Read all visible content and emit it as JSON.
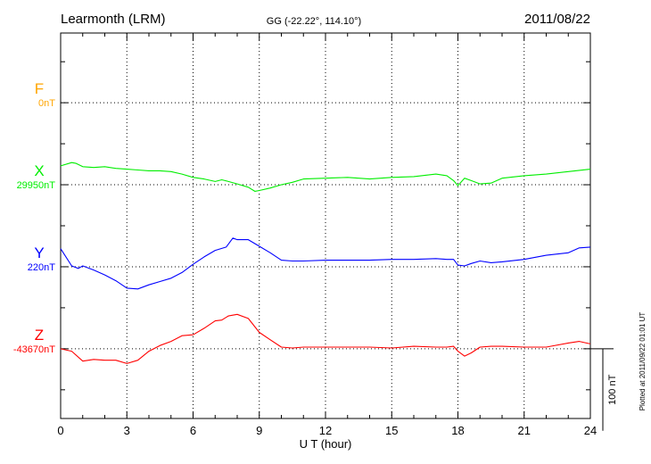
{
  "header": {
    "station": "Learmonth (LRM)",
    "coords": "GG (-22.22°, 114.10°)",
    "date": "2011/08/22"
  },
  "plotted_note": "Plotted at 2011/09/22 01:01  UT",
  "chart_data": {
    "type": "line",
    "title": "Learmonth (LRM)",
    "xlabel": "U T (hour)",
    "ylabel": "",
    "xlim": [
      0,
      24
    ],
    "xticks": [
      0,
      3,
      6,
      9,
      12,
      15,
      18,
      21,
      24
    ],
    "grid": true,
    "scale_bar": {
      "value": 100,
      "label": "100 nT"
    },
    "ylim_nT": [
      -85,
      385
    ],
    "series": [
      {
        "name": "F",
        "baseline_label": "0nT",
        "baseline_offset_nT": 300,
        "color": "#ffa500",
        "x": [],
        "y": []
      },
      {
        "name": "X",
        "baseline_label": "29950nT",
        "baseline_offset_nT": 200,
        "color": "#00ee00",
        "x": [
          0,
          0.5,
          0.7,
          1,
          1.5,
          2,
          2.5,
          3,
          3.5,
          4,
          4.5,
          5,
          5.5,
          6,
          6.5,
          7,
          7.3,
          7.6,
          8,
          8.5,
          8.8,
          9,
          9.5,
          10,
          10.5,
          11,
          12,
          13,
          14,
          15,
          16,
          17,
          17.5,
          17.8,
          18,
          18.3,
          18.6,
          19,
          19.5,
          20,
          21,
          22,
          23,
          24
        ],
        "y": [
          23,
          27,
          26,
          22,
          21,
          22,
          20,
          19,
          18,
          17,
          17,
          16,
          13,
          9,
          7,
          4,
          6,
          4,
          1,
          -3,
          -8,
          -7,
          -4,
          0,
          3,
          7,
          8,
          9,
          7,
          9,
          10,
          13,
          11,
          5,
          -1,
          8,
          5,
          1,
          2,
          8,
          11,
          13,
          16,
          19
        ]
      },
      {
        "name": "Y",
        "baseline_label": "220nT",
        "baseline_offset_nT": 100,
        "color": "#0000ff",
        "x": [
          0,
          0.5,
          0.8,
          1,
          1.5,
          2,
          2.5,
          3,
          3.5,
          4,
          4.5,
          5,
          5.5,
          6,
          6.5,
          7,
          7.5,
          7.8,
          8,
          8.5,
          9,
          9.5,
          10,
          10.5,
          11,
          12,
          13,
          14,
          15,
          16,
          17,
          17.5,
          17.8,
          18,
          18.3,
          18.6,
          19,
          19.5,
          20,
          21,
          22,
          23,
          23.5,
          24
        ],
        "y": [
          22,
          1,
          -2,
          1,
          -4,
          -10,
          -17,
          -26,
          -27,
          -22,
          -18,
          -14,
          -7,
          3,
          12,
          20,
          24,
          35,
          33,
          33,
          25,
          17,
          8,
          7,
          7,
          8,
          8,
          8,
          9,
          9,
          10,
          9,
          9,
          2,
          1,
          4,
          7,
          5,
          6,
          9,
          14,
          17,
          23,
          24
        ]
      },
      {
        "name": "Z",
        "baseline_label": "-43670nT",
        "baseline_offset_nT": 0,
        "color": "#ff0000",
        "x": [
          0,
          0.5,
          1,
          1.5,
          2,
          2.5,
          3,
          3.5,
          4,
          4.5,
          5,
          5.5,
          6,
          6.5,
          7,
          7.3,
          7.6,
          8,
          8.5,
          9,
          9.5,
          10,
          10.5,
          11,
          12,
          13,
          14,
          15,
          16,
          17,
          17.5,
          17.8,
          18,
          18.3,
          18.6,
          19,
          19.5,
          20,
          21,
          22,
          23,
          23.5,
          24
        ],
        "y": [
          0,
          -3,
          -15,
          -13,
          -14,
          -14,
          -18,
          -14,
          -3,
          4,
          9,
          16,
          17,
          25,
          34,
          35,
          40,
          42,
          37,
          20,
          11,
          2,
          1,
          2,
          2,
          2,
          2,
          1,
          3,
          2,
          2,
          3,
          -3,
          -9,
          -5,
          2,
          3,
          3,
          2,
          2,
          7,
          9,
          6
        ]
      }
    ]
  }
}
